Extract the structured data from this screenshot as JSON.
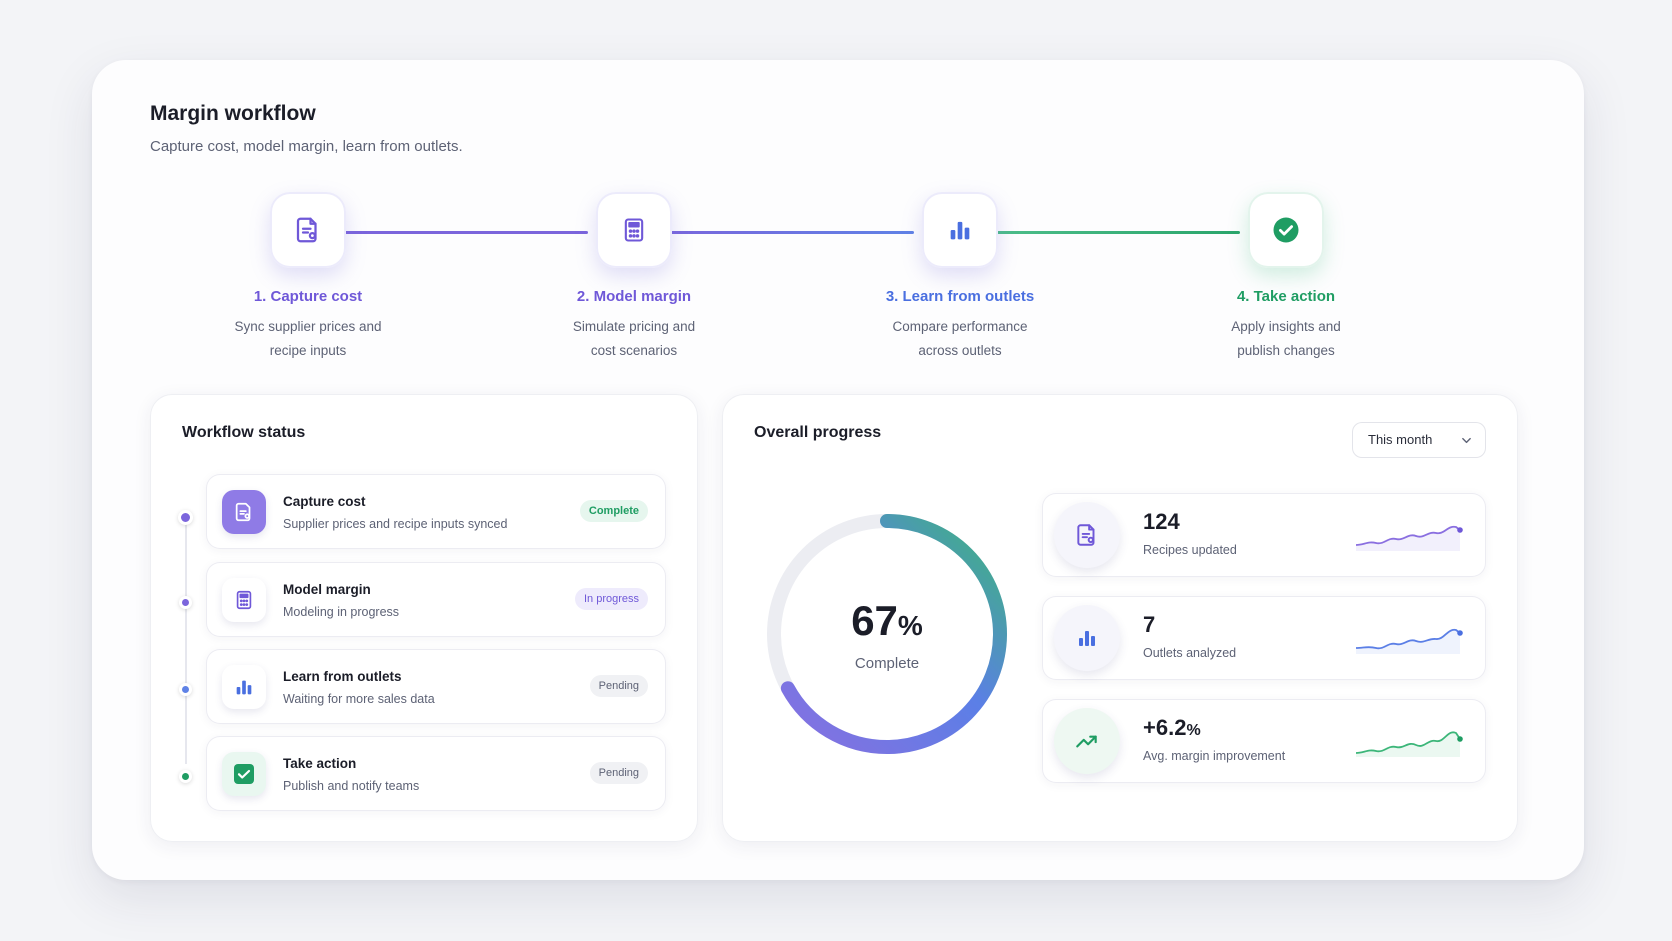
{
  "header": {
    "title": "Margin workflow",
    "subtitle": "Capture cost, model margin, learn from outlets."
  },
  "steps": [
    {
      "title": "1. Capture cost",
      "desc": "Sync supplier prices and recipe inputs",
      "color": "#6f58d8",
      "icon": "document-icon"
    },
    {
      "title": "2. Model margin",
      "desc": "Simulate pricing and cost scenarios",
      "color": "#6f58d8",
      "icon": "calculator-icon"
    },
    {
      "title": "3. Learn from outlets",
      "desc": "Compare performance across outlets",
      "color": "#4a6fe0",
      "icon": "bar-chart-icon"
    },
    {
      "title": "4. Take action",
      "desc": "Apply insights and publish changes",
      "color": "#1f9d63",
      "icon": "check-circle-icon"
    }
  ],
  "workflow_status": {
    "title": "Workflow status",
    "items": [
      {
        "name": "Capture cost",
        "desc": "Supplier prices and recipe inputs synced",
        "badge": "Complete",
        "icon": "document-icon"
      },
      {
        "name": "Model margin",
        "desc": "Modeling in progress",
        "badge": "In progress",
        "icon": "calculator-icon"
      },
      {
        "name": "Learn from outlets",
        "desc": "Waiting for more sales data",
        "badge": "Pending",
        "icon": "bar-chart-icon"
      },
      {
        "name": "Take action",
        "desc": "Publish and notify teams",
        "badge": "Pending",
        "icon": "check-icon"
      }
    ]
  },
  "overall_progress": {
    "title": "Overall progress",
    "period": "This month",
    "percent_value": "67",
    "percent_sign": "%",
    "percent_fraction": 0.67,
    "label": "Complete",
    "metrics": [
      {
        "value": "124",
        "suffix": "",
        "label": "Recipes updated",
        "icon": "document-icon"
      },
      {
        "value": "7",
        "suffix": "",
        "label": "Outlets analyzed",
        "icon": "bar-chart-icon"
      },
      {
        "value": "+6.2",
        "suffix": "%",
        "label": "Avg. margin improvement",
        "icon": "trend-up-icon"
      }
    ]
  },
  "colors": {
    "purple": "#6f58d8",
    "blue": "#4a6fe0",
    "green": "#1f9d63",
    "badge_complete_bg": "#e6f6ee",
    "badge_progress_bg": "#eeebfc",
    "badge_pending_bg": "#f0f1f4"
  }
}
